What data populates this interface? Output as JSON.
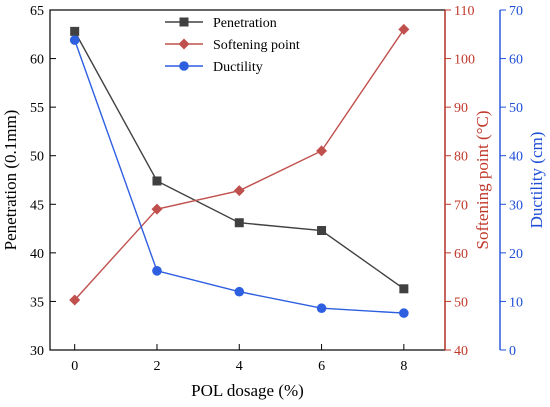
{
  "chart_data": {
    "type": "line",
    "xlabel": "POL dosage (%)",
    "x": [
      0,
      2,
      4,
      6,
      8
    ],
    "xlim": [
      -0.6,
      9.0
    ],
    "xticks": [
      0,
      2,
      4,
      6,
      8
    ],
    "legend_position": "top-center",
    "grid": false,
    "axes": {
      "left": {
        "label": "Penetration (0.1mm)",
        "ylim": [
          30,
          65
        ],
        "ticks": [
          30,
          35,
          40,
          45,
          50,
          55,
          60,
          65
        ],
        "color": "#000000"
      },
      "right1": {
        "label": "Softening point (°C)",
        "ylim": [
          40,
          110
        ],
        "ticks": [
          40,
          50,
          60,
          70,
          80,
          90,
          100,
          110
        ],
        "color": "#c0392b"
      },
      "right2": {
        "label": "Ductility (cm)",
        "ylim": [
          0,
          70
        ],
        "ticks": [
          0,
          10,
          20,
          30,
          40,
          50,
          60,
          70
        ],
        "color": "#1f4fd8"
      }
    },
    "series": [
      {
        "name": "Penetration",
        "axis": "left",
        "values": [
          62.8,
          47.4,
          43.1,
          42.3,
          36.3
        ],
        "color": "#404040",
        "marker": "square"
      },
      {
        "name": "Softening point",
        "axis": "right1",
        "values": [
          50.3,
          69.0,
          72.8,
          81.0,
          106.0
        ],
        "color": "#c0504d",
        "line_color": "#c0504d",
        "marker": "diamond"
      },
      {
        "name": "Ductility",
        "axis": "right2",
        "values": [
          63.8,
          16.3,
          12.0,
          8.6,
          7.6
        ],
        "color": "#2d5fe0",
        "marker": "circle"
      }
    ]
  }
}
